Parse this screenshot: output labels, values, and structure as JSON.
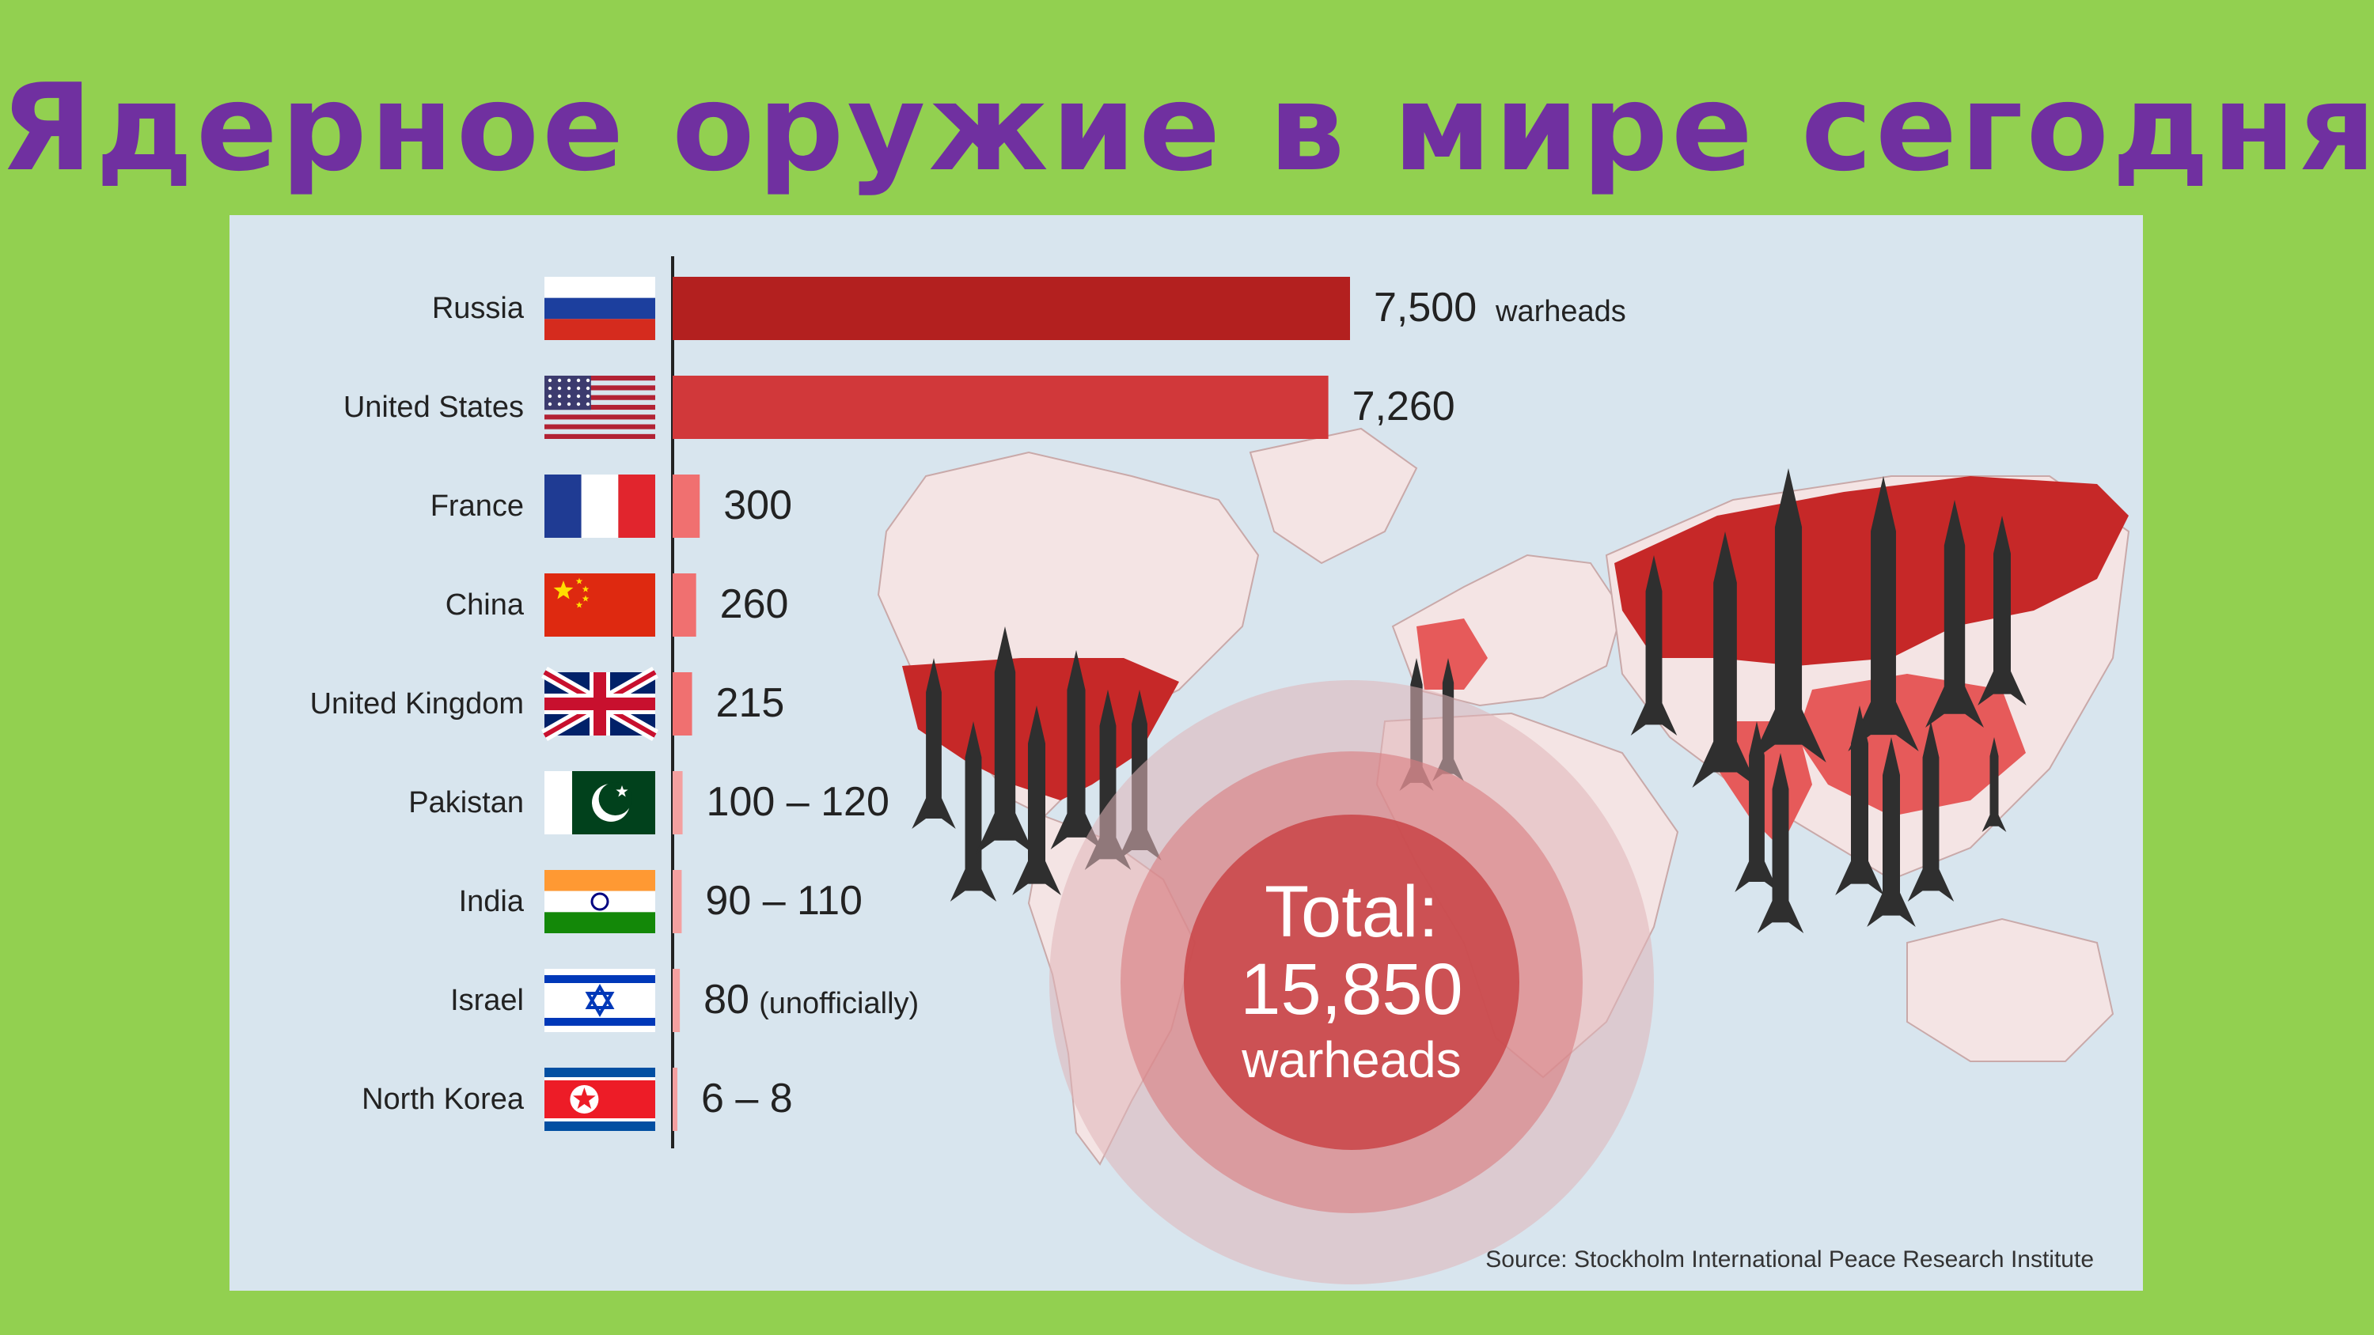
{
  "title": "Ядерное оружие в мире сегодня",
  "chart_data": {
    "type": "bar",
    "orientation": "horizontal",
    "unit_label": "warheads",
    "categories": [
      "Russia",
      "United States",
      "France",
      "China",
      "United Kingdom",
      "Pakistan",
      "India",
      "Israel",
      "North Korea"
    ],
    "values": [
      7500,
      7260,
      300,
      260,
      215,
      110,
      100,
      80,
      7
    ],
    "value_labels": [
      "7,500",
      "7,260",
      "300",
      "260",
      "215",
      "100 – 120",
      "90 – 110",
      "80",
      "6 – 8"
    ],
    "value_notes": [
      "warheads",
      "",
      "",
      "",
      "",
      "",
      "",
      "(unofficially)",
      ""
    ],
    "total": {
      "line1": "Total:",
      "line2": "15,850",
      "line3": "warheads"
    },
    "source": "Source: Stockholm International Peace Research Institute",
    "colors": {
      "largest": "#b3201f",
      "large": "#d1383a",
      "small": "#f07070",
      "tiny": "#f4a0a0"
    }
  },
  "flags": [
    "russia-flag",
    "usa-flag",
    "france-flag",
    "china-flag",
    "uk-flag",
    "pakistan-flag",
    "india-flag",
    "israel-flag",
    "north-korea-flag"
  ]
}
